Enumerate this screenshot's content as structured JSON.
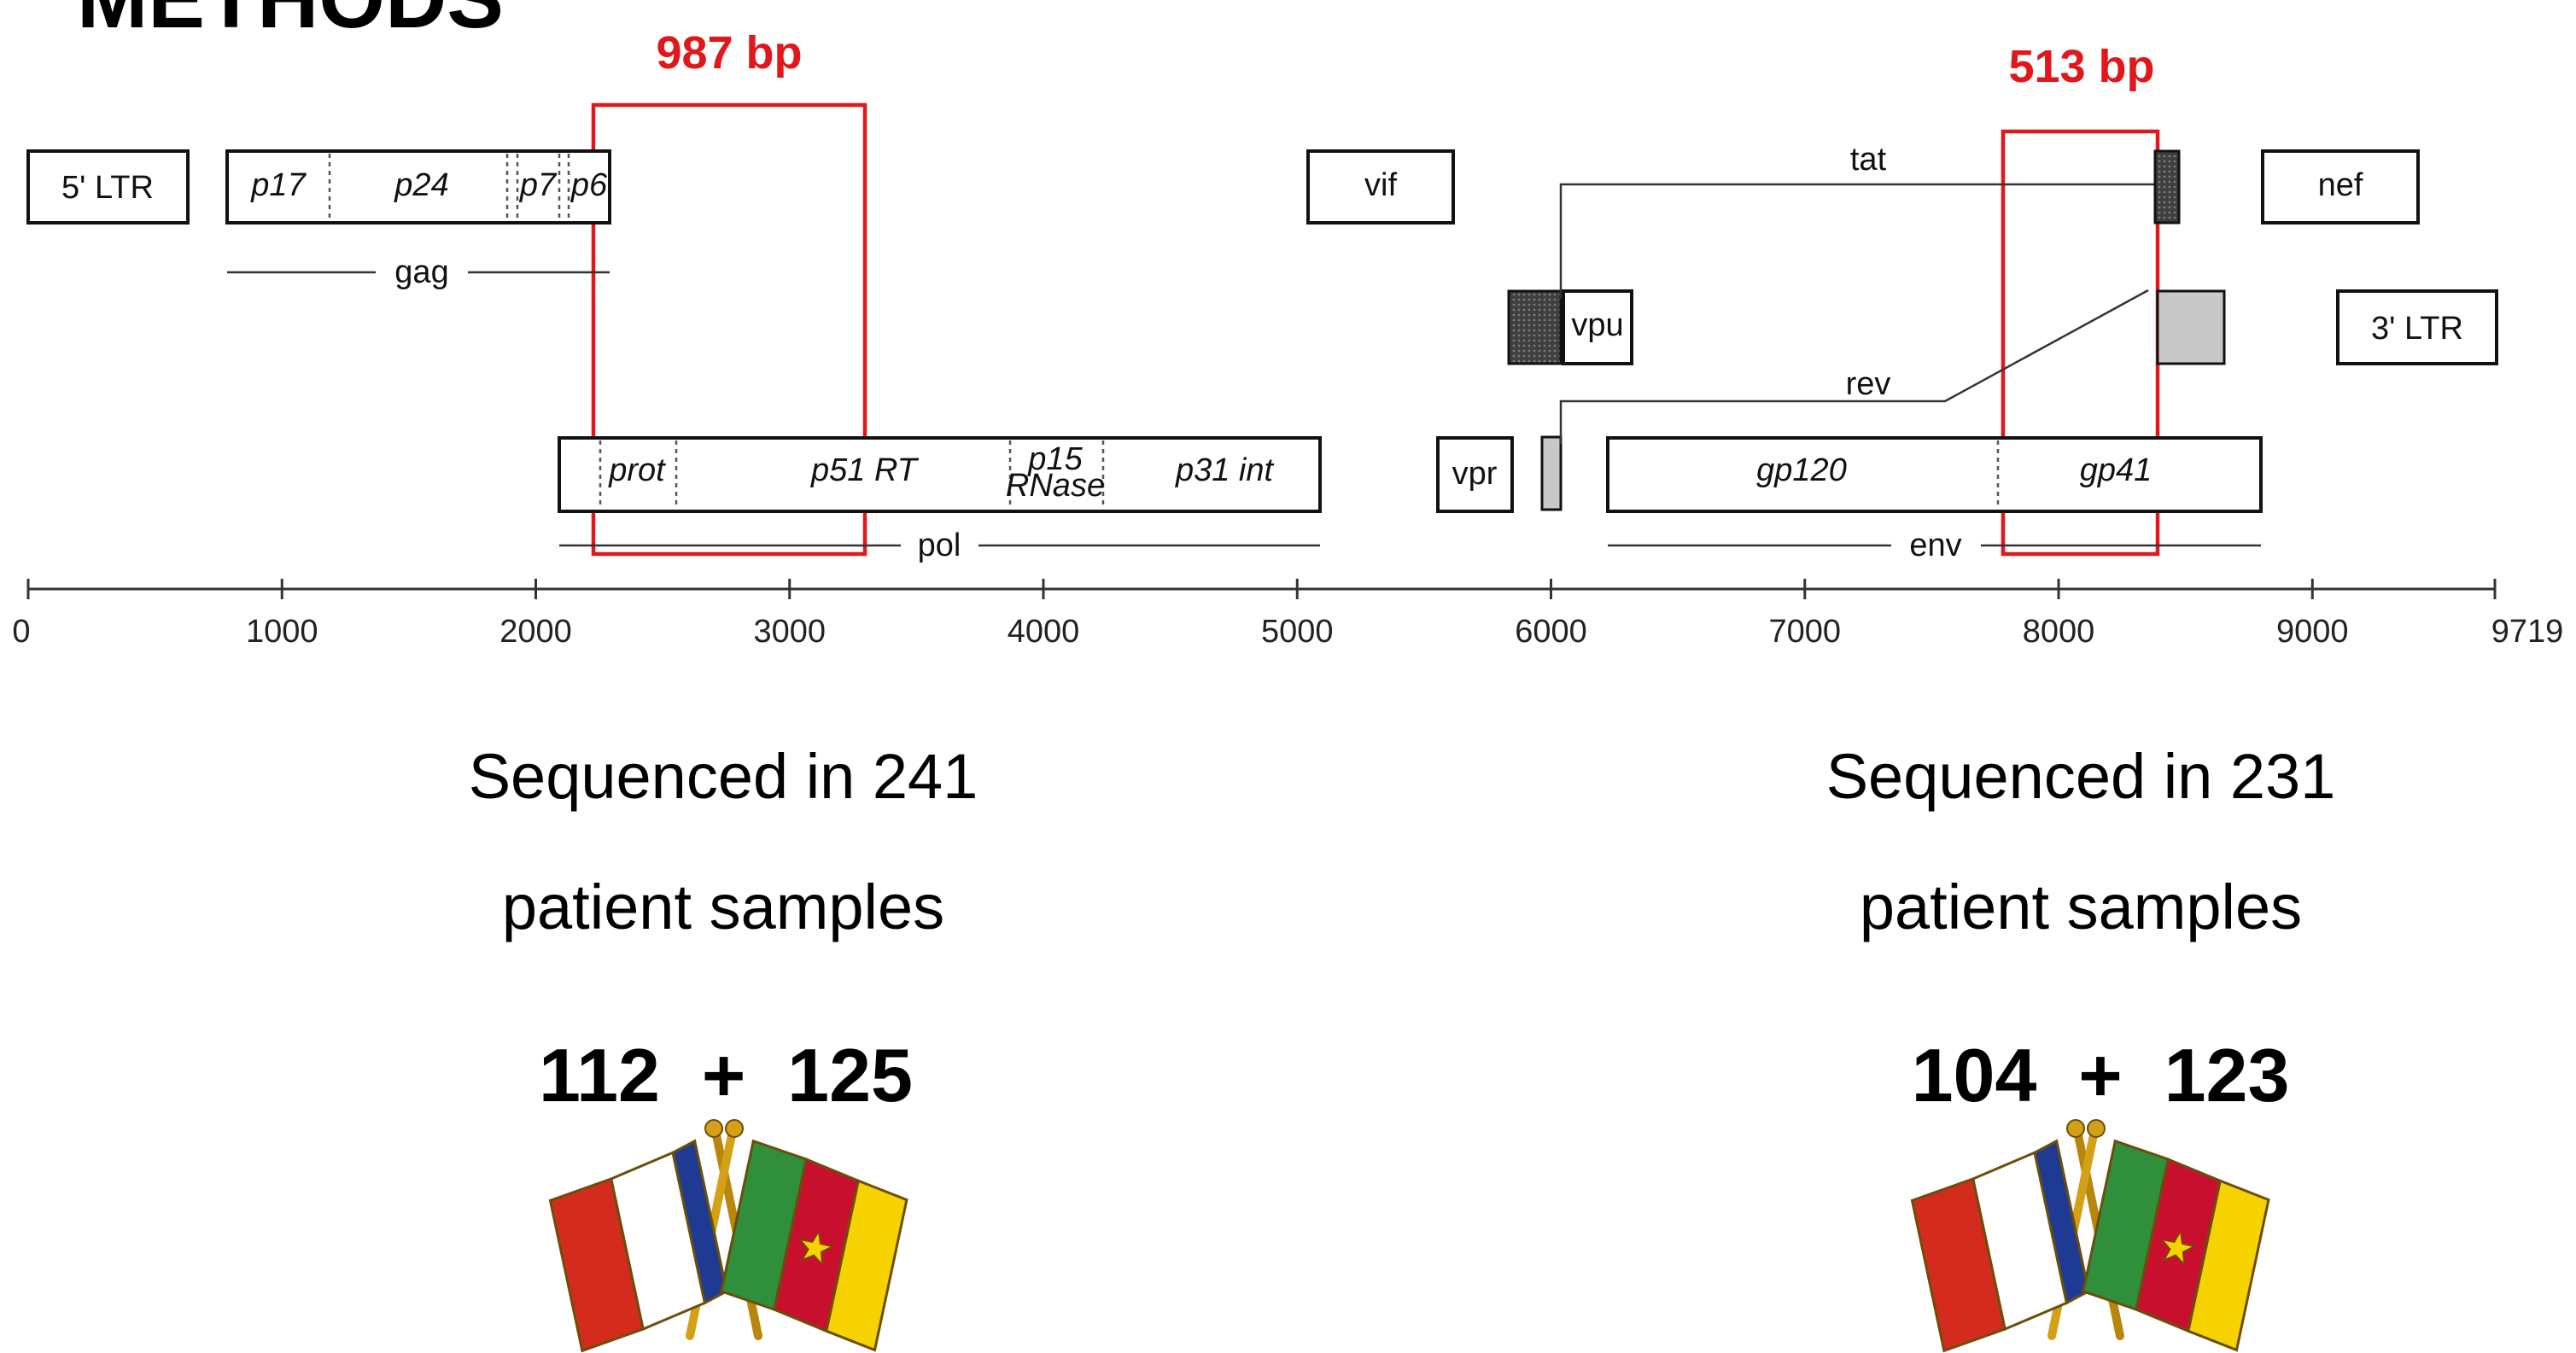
{
  "title": "METHODS",
  "colors": {
    "highlight": "#e0171b",
    "dark_fill": "#4a4a4a",
    "grey_fill": "#c8c8c8",
    "france_blue": "#1f3a93",
    "france_red": "#d52b1e",
    "cameroon_green": "#2f8f3a",
    "cameroon_red": "#c8102e",
    "cameroon_yellow": "#f5d200",
    "star": "#f5d200"
  },
  "genome": {
    "ltr5": "5' LTR",
    "ltr3": "3' LTR",
    "genes": {
      "vif": "vif",
      "nef": "nef",
      "vpu": "vpu",
      "vpr": "vpr",
      "tat": "tat",
      "rev": "rev",
      "gag": "gag",
      "pol": "pol",
      "env": "env"
    },
    "gag_domains": {
      "p17": "p17",
      "p24": "p24",
      "p7": "p7",
      "p6": "p6"
    },
    "pol_domains": {
      "prot": "prot",
      "p51rt": "p51 RT",
      "p15": "p15",
      "rnase": "RNase",
      "p31int": "p31 int"
    },
    "env_domains": {
      "gp120": "gp120",
      "gp41": "gp41"
    }
  },
  "axis": {
    "ticks": [
      {
        "label": "0",
        "value": 0
      },
      {
        "label": "1000",
        "value": 1000
      },
      {
        "label": "2000",
        "value": 2000
      },
      {
        "label": "3000",
        "value": 3000
      },
      {
        "label": "4000",
        "value": 4000
      },
      {
        "label": "5000",
        "value": 5000
      },
      {
        "label": "6000",
        "value": 6000
      },
      {
        "label": "7000",
        "value": 7000
      },
      {
        "label": "8000",
        "value": 8000
      },
      {
        "label": "9000",
        "value": 9000
      },
      {
        "label": "9719",
        "value": 9719
      }
    ]
  },
  "regions": {
    "left": {
      "size_label": "987 bp",
      "line1": "Sequenced in 241",
      "line2": "patient samples",
      "counts": "112  +  125"
    },
    "right": {
      "size_label": "513 bp",
      "line1": "Sequenced in 231",
      "line2": "patient samples",
      "counts": "104  +  123"
    }
  }
}
